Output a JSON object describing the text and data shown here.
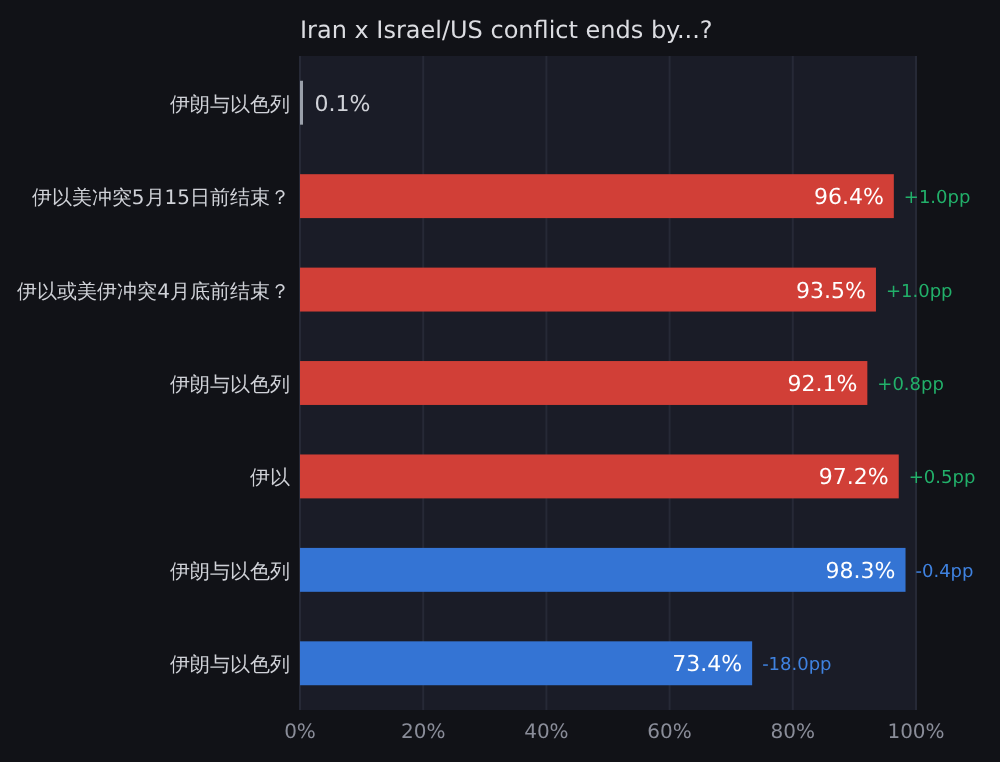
{
  "chart_data": {
    "type": "bar",
    "orientation": "horizontal",
    "title": "Iran x Israel/US conflict ends by...?",
    "categories": [
      "伊朗与以色列",
      "伊以美冲突5月15日前结束？",
      "伊以或美伊冲突4月底前结束？",
      "伊朗与以色列",
      "伊以",
      "伊朗与以色列",
      "伊朗与以色列"
    ],
    "values": [
      0.1,
      96.4,
      93.5,
      92.1,
      97.2,
      98.3,
      73.4
    ],
    "colors": [
      "#9aa0aa",
      "#d13f37",
      "#d13f37",
      "#d13f37",
      "#d13f37",
      "#3474d4",
      "#3474d4"
    ],
    "value_labels": [
      "0.1%",
      "96.4%",
      "93.5%",
      "92.1%",
      "97.2%",
      "98.3%",
      "73.4%"
    ],
    "annotations": [
      "+1.0pp",
      "+1.0pp",
      "+0.8pp",
      "+0.5pp",
      "-0.4pp",
      "-18.0pp"
    ],
    "xlim": [
      0,
      100
    ],
    "xticks": [
      {
        "value": 0,
        "label": "0%"
      },
      {
        "value": 20,
        "label": "20%"
      },
      {
        "value": 40,
        "label": "40%"
      },
      {
        "value": 60,
        "label": "60%"
      },
      {
        "value": 80,
        "label": "80%"
      },
      {
        "value": 100,
        "label": "100%"
      }
    ],
    "grid": "x"
  }
}
